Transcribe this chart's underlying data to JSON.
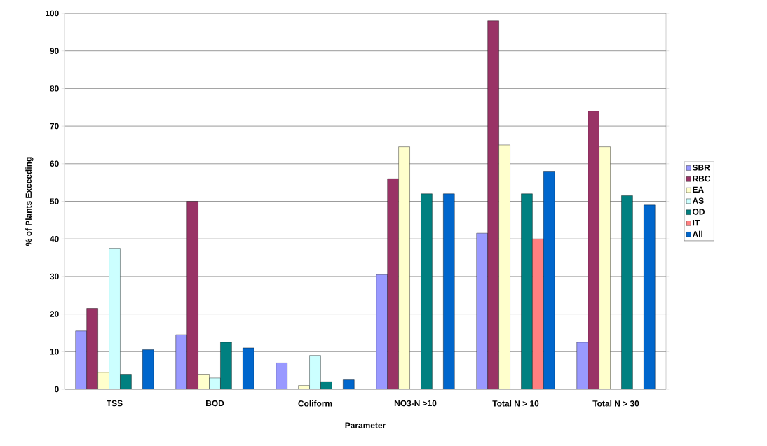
{
  "chart_data": {
    "type": "bar",
    "xlabel": "Parameter",
    "ylabel": "% of Plants Exceeding",
    "categories": [
      "TSS",
      "BOD",
      "Coliform",
      "NO3-N >10",
      "Total N > 10",
      "Total N > 30"
    ],
    "series": [
      {
        "name": "SBR",
        "color": "#9999ff",
        "values": [
          15.5,
          14.5,
          7,
          30.5,
          41.5,
          12.5
        ]
      },
      {
        "name": "RBC",
        "color": "#993366",
        "values": [
          21.5,
          50,
          0,
          56,
          98,
          74
        ]
      },
      {
        "name": "EA",
        "color": "#ffffcc",
        "values": [
          4.5,
          4,
          1,
          64.5,
          65,
          64.5
        ]
      },
      {
        "name": "AS",
        "color": "#ccffff",
        "values": [
          37.5,
          3,
          9,
          0,
          0,
          0
        ]
      },
      {
        "name": "OD",
        "color": "#008080",
        "values": [
          4,
          12.5,
          2,
          52,
          52,
          51.5
        ]
      },
      {
        "name": "IT",
        "color": "#ff8080",
        "values": [
          0,
          0,
          0,
          0,
          40,
          0
        ]
      },
      {
        "name": "All",
        "color": "#0066cc",
        "values": [
          10.5,
          11,
          2.5,
          52,
          58,
          49
        ]
      }
    ],
    "ylim": [
      0,
      100
    ],
    "yticks": [
      0,
      10,
      20,
      30,
      40,
      50,
      60,
      70,
      80,
      90,
      100
    ],
    "grid": "y",
    "legend": "right"
  }
}
